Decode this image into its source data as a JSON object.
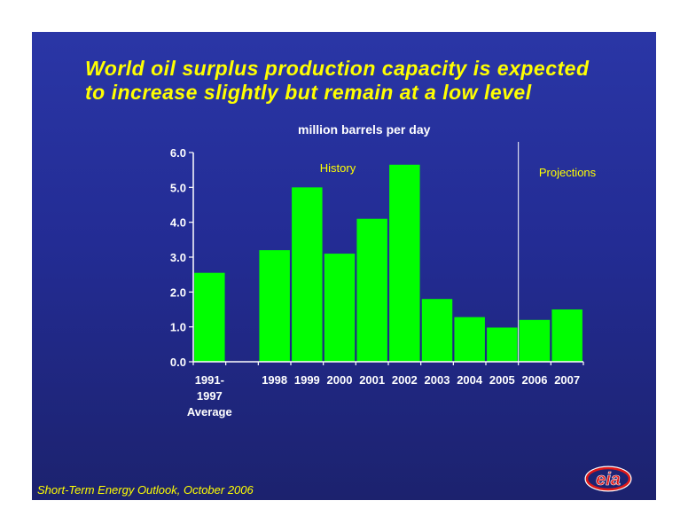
{
  "title_lines": [
    "World oil surplus production capacity is expected",
    "to increase slightly but remain at a low level"
  ],
  "footer": {
    "source": "Short-Term Energy Outlook, October 2006"
  },
  "logo_text": "eia",
  "colors": {
    "background": "#2329a0",
    "bar": "#00ff00",
    "title": "#ffff00",
    "text": "#ffffff"
  },
  "chart_data": {
    "type": "bar",
    "title": "million barrels per day",
    "ylim": [
      0,
      6
    ],
    "yticks": [
      "0.0",
      "1.0",
      "2.0",
      "3.0",
      "4.0",
      "5.0",
      "6.0"
    ],
    "yticks_values": [
      0,
      1,
      2,
      3,
      4,
      5,
      6
    ],
    "categories": [
      [
        "1991-",
        "1997",
        "Average"
      ],
      [
        ""
      ],
      [
        "1998"
      ],
      [
        "1999"
      ],
      [
        "2000"
      ],
      [
        "2001"
      ],
      [
        "2002"
      ],
      [
        "2003"
      ],
      [
        "2004"
      ],
      [
        "2005"
      ],
      [
        "2006"
      ],
      [
        "2007"
      ]
    ],
    "values": [
      2.55,
      null,
      3.2,
      5.0,
      3.1,
      4.1,
      5.65,
      1.8,
      1.28,
      0.98,
      1.2,
      1.5
    ],
    "annotations": [
      {
        "text": "History"
      },
      {
        "text": "Projections"
      }
    ],
    "divider_after_category": 9,
    "grid": false,
    "legend": "none"
  }
}
